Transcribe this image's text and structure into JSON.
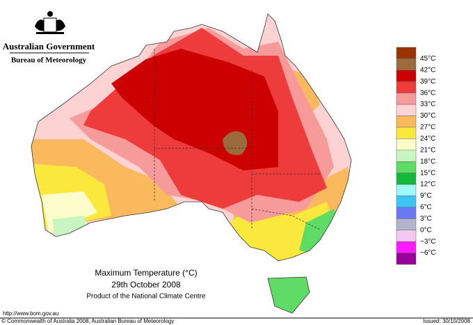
{
  "header": {
    "government": "Australian Government",
    "bureau": "Bureau of Meteorology"
  },
  "map": {
    "title": "Maximum Temperature (°C)",
    "date": "29th October 2008",
    "product": "Product of the National Climate Centre"
  },
  "legend": {
    "labels": [
      "45°C",
      "42°C",
      "39°C",
      "36°C",
      "33°C",
      "30°C",
      "27°C",
      "24°C",
      "21°C",
      "18°C",
      "15°C",
      "12°C",
      "9°C",
      "6°C",
      "3°C",
      "0°C",
      "−3°C",
      "−6°C"
    ],
    "colors": [
      "#993300",
      "#9c6b3c",
      "#cc0000",
      "#ee3b3b",
      "#f79a9a",
      "#fcd2d2",
      "#f9b95c",
      "#fbe83c",
      "#fdfccb",
      "#c8f5c2",
      "#5fdc66",
      "#15b93a",
      "#9ef9f9",
      "#3cc4f4",
      "#6a78f5",
      "#b4b4cc",
      "#f2c9f2",
      "#ff19ff",
      "#990099"
    ]
  },
  "footer": {
    "url": "http://www.bom.gov.au",
    "copyright": "© Commonwealth of Australia 2008, Australian Bureau of Meteorology",
    "issued": "Issued: 30/10/2008"
  }
}
